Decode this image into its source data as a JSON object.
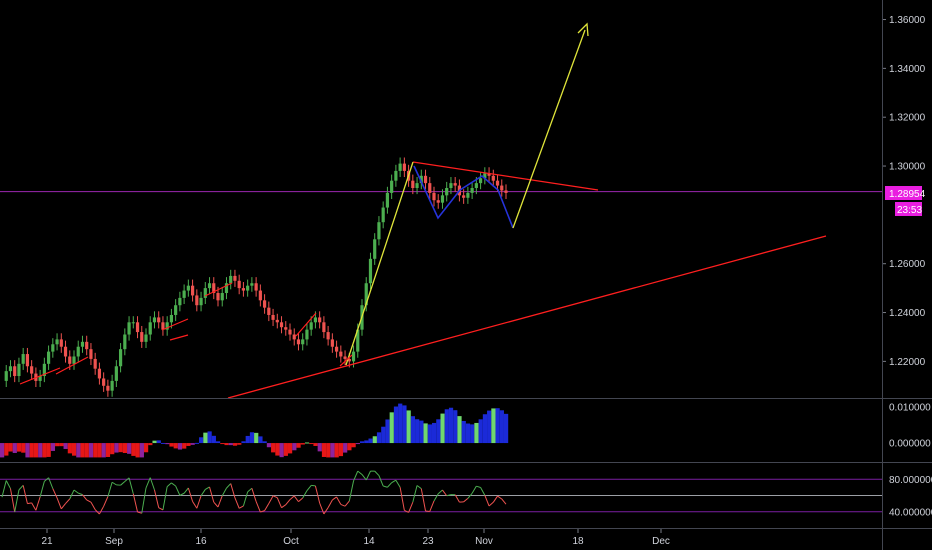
{
  "colors": {
    "background": "#000000",
    "axis_text": "#d1d4dc",
    "price_line": "#9c27b0",
    "price_badge": "#e91ee0",
    "up": "#4caf50",
    "down": "#ef5350",
    "trendline": "#ff1f1f",
    "projection": "#e0e53a",
    "pullback": "#2633d9",
    "osc_blue": "#1e2ff0",
    "osc_green": "#7cf07a",
    "osc_red": "#ff1a1a",
    "osc_purple": "#9c27b0",
    "rsi_band": "#7b1fa2"
  },
  "axes": {
    "price_ticks": [
      "1.36000",
      "1.34000",
      "1.32000",
      "1.30000",
      "1.26000",
      "1.24000",
      "1.22000"
    ],
    "price_tick_values": [
      1.36,
      1.34,
      1.32,
      1.3,
      1.26,
      1.24,
      1.22
    ],
    "osc_ticks": [
      "0.010000",
      "0.000000"
    ],
    "osc_tick_values": [
      0.01,
      0.0
    ],
    "rsi_ticks": [
      "80.000000",
      "40.000000"
    ],
    "rsi_tick_values": [
      80,
      40
    ],
    "time_ticks": [
      "21",
      "Sep",
      "16",
      "Oct",
      "14",
      "23",
      "Nov",
      "18",
      "Dec"
    ]
  },
  "badges": {
    "last_price": "1.28954",
    "countdown": "23:53"
  },
  "chart_data": {
    "type": "line",
    "price_ylim": [
      1.205,
      1.368
    ],
    "osc_ylim": [
      -0.005,
      0.012
    ],
    "rsi_ylim": [
      20,
      100
    ],
    "last_price": 1.28954,
    "price_series": [
      1.212,
      1.216,
      1.218,
      1.214,
      1.219,
      1.223,
      1.218,
      1.215,
      1.212,
      1.214,
      1.219,
      1.224,
      1.227,
      1.229,
      1.226,
      1.222,
      1.219,
      1.222,
      1.226,
      1.228,
      1.225,
      1.221,
      1.217,
      1.213,
      1.21,
      1.208,
      1.212,
      1.218,
      1.225,
      1.231,
      1.236,
      1.236,
      1.232,
      1.228,
      1.231,
      1.236,
      1.238,
      1.236,
      1.233,
      1.236,
      1.239,
      1.243,
      1.246,
      1.249,
      1.251,
      1.247,
      1.243,
      1.246,
      1.25,
      1.252,
      1.248,
      1.245,
      1.248,
      1.252,
      1.255,
      1.253,
      1.25,
      1.249,
      1.251,
      1.252,
      1.249,
      1.245,
      1.242,
      1.239,
      1.237,
      1.236,
      1.234,
      1.233,
      1.231,
      1.229,
      1.227,
      1.229,
      1.233,
      1.236,
      1.238,
      1.236,
      1.232,
      1.229,
      1.226,
      1.224,
      1.222,
      1.221,
      1.22,
      1.224,
      1.233,
      1.243,
      1.252,
      1.262,
      1.27,
      1.277,
      1.283,
      1.289,
      1.294,
      1.298,
      1.301,
      1.298,
      1.294,
      1.291,
      1.293,
      1.296,
      1.293,
      1.289,
      1.286,
      1.285,
      1.288,
      1.291,
      1.293,
      1.292,
      1.288,
      1.287,
      1.289,
      1.291,
      1.293,
      1.295,
      1.297,
      1.296,
      1.294,
      1.292,
      1.29,
      1.289
    ],
    "price_line_value": 1.28954
  }
}
